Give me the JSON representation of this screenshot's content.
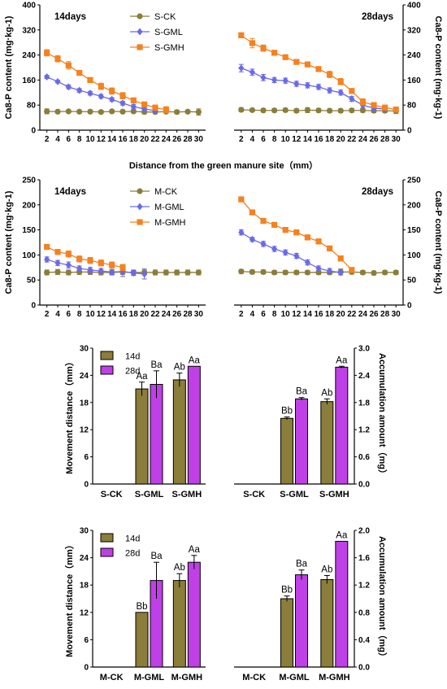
{
  "figure": {
    "row1_ylabel_left": "Ca8-P content (mg·kg-1)",
    "row1_ylabel_right": "Ca8-P content (mg·kg-1)",
    "shared_xlabel": "Distance from the green manure site（mm）",
    "bar_ylabel_left": "Movement distance（mm）",
    "bar_ylabel_right": "Accumulation amount（mg）"
  },
  "chart_data": [
    {
      "id": "S14",
      "type": "line",
      "title": "14days",
      "x": [
        2,
        4,
        6,
        8,
        10,
        12,
        14,
        16,
        18,
        20,
        22,
        24,
        26,
        28,
        30
      ],
      "xticks": [
        "2",
        "4",
        "6",
        "8",
        "10",
        "12",
        "14",
        "16",
        "18",
        "20",
        "22",
        "24",
        "26",
        "28",
        "30"
      ],
      "ylim": [
        0,
        400
      ],
      "yticks": [
        "0",
        "80",
        "160",
        "240",
        "320",
        "400"
      ],
      "legend": "top-center",
      "series": [
        {
          "name": "S-CK",
          "color": "#8b7d3a",
          "marker": "circle",
          "values": [
            60,
            59,
            60,
            59,
            59,
            58,
            60,
            59,
            60,
            58,
            58,
            59,
            58,
            59,
            58
          ],
          "errors": [
            8,
            5,
            5,
            4,
            5,
            5,
            5,
            5,
            5,
            6,
            5,
            5,
            6,
            5,
            10
          ]
        },
        {
          "name": "S-GML",
          "color": "#6a6ae8",
          "marker": "diamond",
          "values": [
            170,
            155,
            138,
            127,
            118,
            108,
            98,
            86,
            75,
            68,
            62,
            null,
            null,
            null,
            null
          ],
          "errors": [
            5,
            4,
            6,
            6,
            6,
            6,
            6,
            6,
            7,
            5,
            5,
            null,
            null,
            null,
            null
          ]
        },
        {
          "name": "S-GMH",
          "color": "#f5821f",
          "marker": "square",
          "values": [
            247,
            228,
            207,
            183,
            160,
            140,
            125,
            110,
            95,
            82,
            72,
            65,
            null,
            null,
            null
          ],
          "errors": [
            10,
            10,
            12,
            8,
            8,
            10,
            10,
            10,
            8,
            8,
            8,
            10,
            null,
            null,
            null
          ]
        }
      ]
    },
    {
      "id": "S28",
      "type": "line",
      "title": "28days",
      "x": [
        2,
        4,
        6,
        8,
        10,
        12,
        14,
        16,
        18,
        20,
        22,
        24,
        26,
        28,
        30
      ],
      "xticks": [
        "2",
        "4",
        "6",
        "8",
        "10",
        "12",
        "14",
        "16",
        "18",
        "20",
        "22",
        "24",
        "26",
        "28",
        "30"
      ],
      "ylim": [
        0,
        400
      ],
      "yticks": [
        "0",
        "80",
        "160",
        "240",
        "320",
        "400"
      ],
      "series": [
        {
          "name": "S-CK",
          "color": "#8b7d3a",
          "marker": "circle",
          "values": [
            65,
            64,
            63,
            63,
            64,
            62,
            64,
            63,
            62,
            62,
            63,
            63,
            62,
            62,
            61
          ],
          "errors": [
            6,
            5,
            6,
            6,
            6,
            6,
            8,
            6,
            6,
            6,
            6,
            6,
            6,
            6,
            8
          ]
        },
        {
          "name": "S-GML",
          "color": "#6a6ae8",
          "marker": "diamond",
          "values": [
            198,
            185,
            168,
            160,
            158,
            148,
            143,
            138,
            127,
            120,
            100,
            80,
            70,
            68,
            null
          ],
          "errors": [
            12,
            10,
            10,
            8,
            8,
            8,
            8,
            8,
            8,
            8,
            8,
            8,
            8,
            8,
            null
          ]
        },
        {
          "name": "S-GMH",
          "color": "#f5821f",
          "marker": "square",
          "values": [
            303,
            278,
            262,
            247,
            233,
            218,
            210,
            195,
            178,
            155,
            125,
            90,
            80,
            72,
            66
          ],
          "errors": [
            8,
            15,
            10,
            8,
            6,
            8,
            8,
            8,
            10,
            10,
            8,
            10,
            8,
            8,
            8
          ]
        }
      ]
    },
    {
      "id": "M14",
      "type": "line",
      "title": "14days",
      "x": [
        2,
        4,
        6,
        8,
        10,
        12,
        14,
        16,
        18,
        20,
        22,
        24,
        26,
        28,
        30
      ],
      "xticks": [
        "2",
        "4",
        "6",
        "8",
        "10",
        "12",
        "14",
        "16",
        "18",
        "20",
        "22",
        "24",
        "26",
        "28",
        "30"
      ],
      "ylim": [
        0,
        250
      ],
      "yticks": [
        "0",
        "50",
        "100",
        "150",
        "200",
        "250"
      ],
      "legend": "top-center",
      "series": [
        {
          "name": "M-CK",
          "color": "#8b7d3a",
          "marker": "circle",
          "values": [
            65,
            66,
            65,
            66,
            66,
            65,
            65,
            66,
            65,
            65,
            65,
            65,
            65,
            65,
            65
          ],
          "errors": [
            5,
            5,
            5,
            5,
            5,
            5,
            5,
            5,
            5,
            5,
            5,
            5,
            5,
            5,
            5
          ]
        },
        {
          "name": "M-GML",
          "color": "#6a6ae8",
          "marker": "diamond",
          "values": [
            91,
            84,
            80,
            73,
            70,
            68,
            66,
            67,
            64,
            62,
            null,
            null,
            null,
            null,
            null
          ],
          "errors": [
            5,
            5,
            6,
            5,
            5,
            5,
            5,
            10,
            5,
            10,
            null,
            null,
            null,
            null,
            null
          ]
        },
        {
          "name": "M-GMH",
          "color": "#f5821f",
          "marker": "square",
          "values": [
            116,
            106,
            102,
            92,
            89,
            84,
            80,
            75,
            null,
            null,
            null,
            null,
            null,
            null,
            null
          ],
          "errors": [
            5,
            5,
            6,
            6,
            6,
            6,
            6,
            6,
            null,
            null,
            null,
            null,
            null,
            null,
            null
          ]
        }
      ]
    },
    {
      "id": "M28",
      "type": "line",
      "title": "28days",
      "x": [
        2,
        4,
        6,
        8,
        10,
        12,
        14,
        16,
        18,
        20,
        22,
        24,
        26,
        28,
        30
      ],
      "xticks": [
        "2",
        "4",
        "6",
        "8",
        "10",
        "12",
        "14",
        "16",
        "18",
        "20",
        "22",
        "24",
        "26",
        "28",
        "30"
      ],
      "ylim": [
        0,
        250
      ],
      "yticks": [
        "0",
        "50",
        "100",
        "150",
        "200",
        "250"
      ],
      "series": [
        {
          "name": "M-CK",
          "color": "#8b7d3a",
          "marker": "circle",
          "values": [
            67,
            66,
            66,
            65,
            65,
            65,
            65,
            65,
            65,
            66,
            66,
            65,
            64,
            65,
            65
          ],
          "errors": [
            4,
            4,
            4,
            4,
            4,
            4,
            4,
            4,
            4,
            6,
            4,
            4,
            4,
            4,
            4
          ]
        },
        {
          "name": "M-GML",
          "color": "#6a6ae8",
          "marker": "diamond",
          "values": [
            145,
            131,
            122,
            112,
            105,
            98,
            85,
            73,
            68,
            65,
            null,
            null,
            null,
            null,
            null
          ],
          "errors": [
            5,
            4,
            5,
            5,
            5,
            5,
            5,
            5,
            5,
            5,
            null,
            null,
            null,
            null,
            null
          ]
        },
        {
          "name": "M-GMH",
          "color": "#f5821f",
          "marker": "square",
          "values": [
            211,
            185,
            168,
            160,
            150,
            145,
            135,
            127,
            113,
            93,
            70,
            null,
            null,
            null,
            null
          ],
          "errors": [
            5,
            5,
            5,
            5,
            5,
            5,
            5,
            5,
            5,
            5,
            5,
            null,
            null,
            null,
            null
          ]
        }
      ]
    },
    {
      "id": "SB1",
      "type": "bar",
      "categories": [
        "S-CK",
        "S-GML",
        "S-GMH"
      ],
      "ylim": [
        0,
        30
      ],
      "yticks": [
        "0",
        "6",
        "12",
        "18",
        "24",
        "30"
      ],
      "legend": "top-left",
      "series": [
        {
          "name": "14d",
          "color": "#8b7d3a",
          "values": [
            null,
            21,
            23
          ],
          "errors": [
            null,
            1.5,
            1.5
          ],
          "labels": [
            "",
            "Aa",
            "Ab"
          ]
        },
        {
          "name": "28d",
          "color": "#bf40e6",
          "values": [
            null,
            22,
            26
          ],
          "errors": [
            null,
            3,
            0
          ],
          "labels": [
            "",
            "Ba",
            "Aa"
          ]
        }
      ]
    },
    {
      "id": "SB2",
      "type": "bar",
      "categories": [
        "S-CK",
        "S-GML",
        "S-GMH"
      ],
      "ylim": [
        0,
        3.0
      ],
      "yticks": [
        "0.0",
        "0.6",
        "1.2",
        "1.8",
        "2.4",
        "3.0"
      ],
      "series": [
        {
          "name": "14d",
          "color": "#8b7d3a",
          "values": [
            null,
            1.45,
            1.82
          ],
          "errors": [
            null,
            0.03,
            0.06
          ],
          "labels": [
            "",
            "Bb",
            "Ab"
          ]
        },
        {
          "name": "28d",
          "color": "#bf40e6",
          "values": [
            null,
            1.88,
            2.58
          ],
          "errors": [
            null,
            0.03,
            0.02
          ],
          "labels": [
            "",
            "Ba",
            "Aa"
          ]
        }
      ]
    },
    {
      "id": "MB1",
      "type": "bar",
      "categories": [
        "M-CK",
        "M-GML",
        "M-GMH"
      ],
      "ylim": [
        0,
        30
      ],
      "yticks": [
        "0",
        "6",
        "12",
        "18",
        "24",
        "30"
      ],
      "legend": "top-left",
      "series": [
        {
          "name": "14d",
          "color": "#8b7d3a",
          "values": [
            null,
            12,
            19
          ],
          "errors": [
            null,
            0,
            1.5
          ],
          "labels": [
            "",
            "Bb",
            "Ab"
          ]
        },
        {
          "name": "28d",
          "color": "#bf40e6",
          "values": [
            null,
            19,
            23
          ],
          "errors": [
            null,
            4,
            1.5
          ],
          "labels": [
            "",
            "Ba",
            "Aa"
          ]
        }
      ]
    },
    {
      "id": "MB2",
      "type": "bar",
      "categories": [
        "M-CK",
        "M-GML",
        "M-GMH"
      ],
      "ylim": [
        0,
        2.0
      ],
      "yticks": [
        "0.0",
        "0.4",
        "0.8",
        "1.2",
        "1.6",
        "2.0"
      ],
      "series": [
        {
          "name": "14d",
          "color": "#8b7d3a",
          "values": [
            null,
            1.0,
            1.28
          ],
          "errors": [
            null,
            0.04,
            0.06
          ],
          "labels": [
            "",
            "Bb",
            "Ab"
          ]
        },
        {
          "name": "28d",
          "color": "#bf40e6",
          "values": [
            null,
            1.35,
            1.84
          ],
          "errors": [
            null,
            0.07,
            0
          ],
          "labels": [
            "",
            "Ba",
            "Aa"
          ]
        }
      ]
    }
  ]
}
